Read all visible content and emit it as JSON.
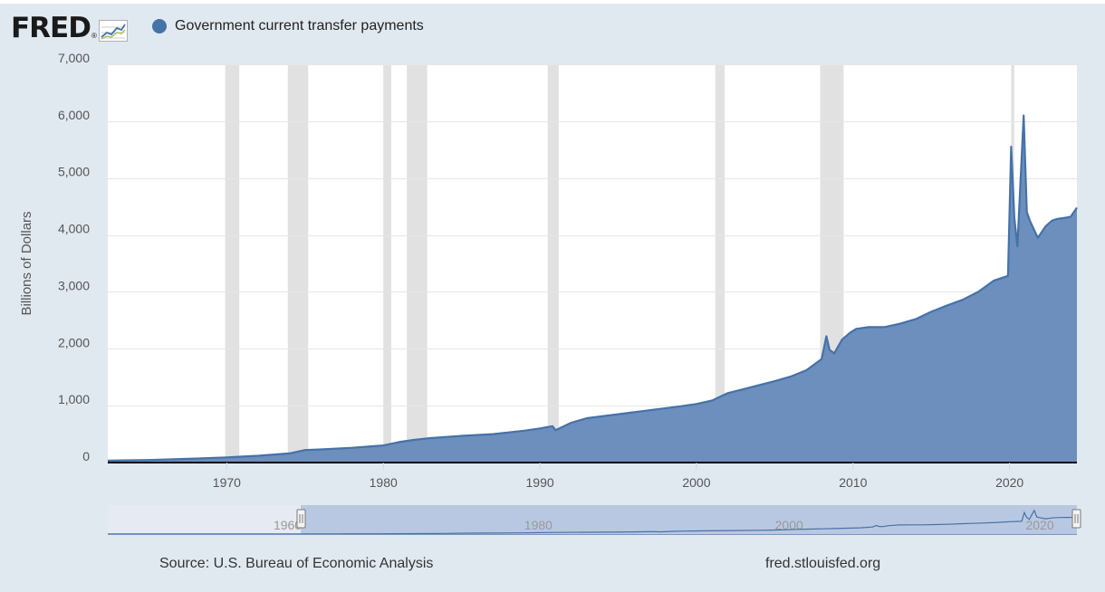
{
  "header": {
    "logo_text": "FRED",
    "logo_reg": "®",
    "logo_graph_icon": "line-chart-icon"
  },
  "legend": {
    "label": "Government current transfer payments",
    "color": "#4572a7"
  },
  "footer": {
    "source": "Source: U.S. Bureau of Economic Analysis",
    "site": "fred.stlouisfed.org"
  },
  "colors": {
    "series_line": "#4572a7",
    "series_fill": "#6d8fbd",
    "recession_band": "#e1e1e1",
    "plot_background": "#ffffff",
    "navigator_window": "#b4c4e0"
  },
  "chart_data": {
    "type": "area",
    "title": "",
    "xlabel": "",
    "ylabel": "Billions of Dollars",
    "xlim": [
      1962.4,
      2024.3
    ],
    "ylim": [
      0,
      7000
    ],
    "y_ticks": [
      0,
      1000,
      2000,
      3000,
      4000,
      5000,
      6000,
      7000
    ],
    "y_tick_labels": [
      "0",
      "1,000",
      "2,000",
      "3,000",
      "4,000",
      "5,000",
      "6,000",
      "7,000"
    ],
    "x_ticks": [
      1970,
      1980,
      1990,
      2000,
      2010,
      2020
    ],
    "x_tick_labels": [
      "1970",
      "1980",
      "1990",
      "2000",
      "2010",
      "2020"
    ],
    "grid": true,
    "legend_position": "top-left",
    "recessions": [
      [
        1969.9,
        1970.8
      ],
      [
        1973.9,
        1975.2
      ],
      [
        1980.0,
        1980.5
      ],
      [
        1981.5,
        1982.8
      ],
      [
        1990.5,
        1991.2
      ],
      [
        2001.2,
        2001.8
      ],
      [
        2007.9,
        2009.4
      ],
      [
        2020.1,
        2020.3
      ]
    ],
    "series": [
      {
        "name": "Government current transfer payments",
        "x": [
          1962.4,
          1965,
          1968,
          1970,
          1972,
          1974,
          1975,
          1976,
          1978,
          1980,
          1981,
          1982,
          1983,
          1985,
          1987,
          1989,
          1990,
          1990.8,
          1991,
          1992,
          1993,
          1995,
          1997,
          1999,
          2000,
          2001,
          2002,
          2003,
          2004,
          2005,
          2006,
          2007,
          2008,
          2008.3,
          2008.5,
          2008.8,
          2009.3,
          2009.8,
          2010.2,
          2011,
          2012,
          2013,
          2014,
          2015,
          2016,
          2017,
          2018,
          2019,
          2019.9,
          2020.1,
          2020.3,
          2020.5,
          2020.9,
          2021.1,
          2021.3,
          2021.8,
          2022.3,
          2022.7,
          2023.0,
          2023.5,
          2023.9,
          2024.3
        ],
        "y": [
          35,
          45,
          70,
          90,
          120,
          160,
          220,
          230,
          260,
          300,
          360,
          400,
          430,
          470,
          500,
          560,
          600,
          640,
          570,
          700,
          780,
          850,
          920,
          990,
          1030,
          1090,
          1220,
          1290,
          1360,
          1430,
          1510,
          1620,
          1820,
          2220,
          1980,
          1920,
          2160,
          2280,
          2350,
          2380,
          2380,
          2440,
          2520,
          2650,
          2760,
          2860,
          3000,
          3200,
          3280,
          5550,
          4300,
          3800,
          6100,
          4400,
          4250,
          3950,
          4150,
          4250,
          4280,
          4300,
          4320,
          4480
        ]
      }
    ],
    "navigator": {
      "x_tick_labels": [
        "1960",
        "1980",
        "2000",
        "2020"
      ],
      "x_ticks": [
        1960,
        1980,
        2000,
        2020
      ]
    }
  }
}
